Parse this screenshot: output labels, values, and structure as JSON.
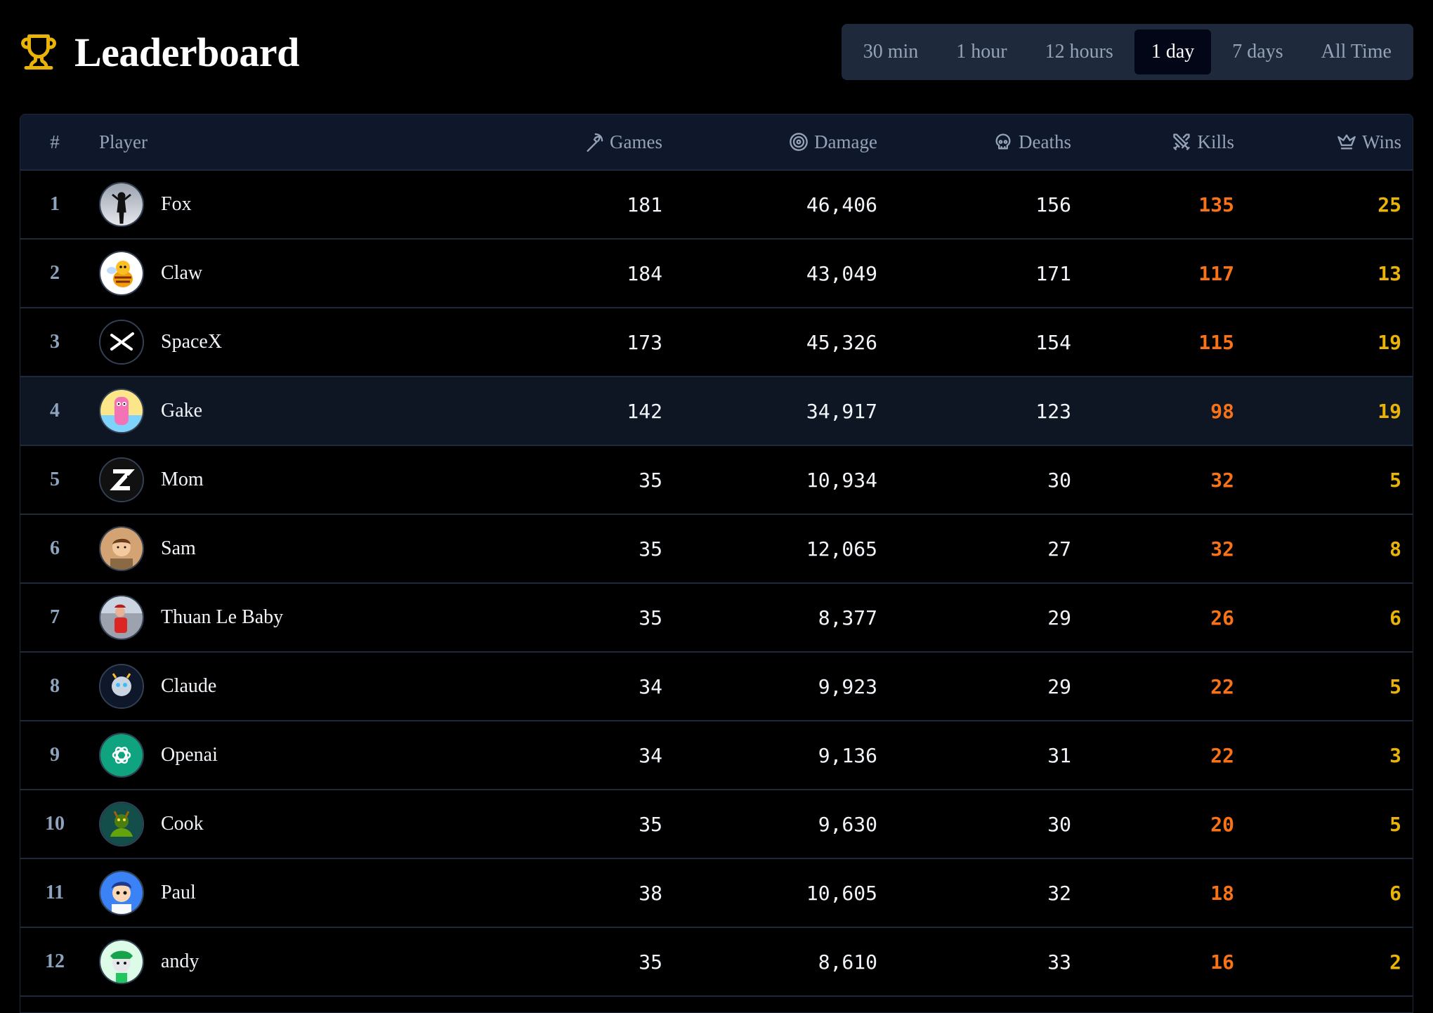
{
  "header": {
    "title": "Leaderboard",
    "icon": "trophy-icon",
    "accent": "#eab308"
  },
  "time_ranges": [
    {
      "label": "30 min",
      "active": false
    },
    {
      "label": "1 hour",
      "active": false
    },
    {
      "label": "12 hours",
      "active": false
    },
    {
      "label": "1 day",
      "active": true
    },
    {
      "label": "7 days",
      "active": false
    },
    {
      "label": "All Time",
      "active": false
    }
  ],
  "columns": {
    "rank": "#",
    "player": "Player",
    "games": "Games",
    "damage": "Damage",
    "deaths": "Deaths",
    "kills": "Kills",
    "wins": "Wins"
  },
  "colors": {
    "kills": "#f97316",
    "wins": "#eab308",
    "highlight_row": "#0f1623"
  },
  "rows": [
    {
      "rank": "1",
      "name": "Fox",
      "avatar": "silhouette-avatar",
      "games": "181",
      "damage": "46,406",
      "deaths": "156",
      "kills": "135",
      "wins": "25"
    },
    {
      "rank": "2",
      "name": "Claw",
      "avatar": "bee-avatar",
      "games": "184",
      "damage": "43,049",
      "deaths": "171",
      "kills": "117",
      "wins": "13"
    },
    {
      "rank": "3",
      "name": "SpaceX",
      "avatar": "x-logo-avatar",
      "games": "173",
      "damage": "45,326",
      "deaths": "154",
      "kills": "115",
      "wins": "19"
    },
    {
      "rank": "4",
      "name": "Gake",
      "avatar": "pink-character-avatar",
      "games": "142",
      "damage": "34,917",
      "deaths": "123",
      "kills": "98",
      "wins": "19",
      "highlighted": true
    },
    {
      "rank": "5",
      "name": "Mom",
      "avatar": "z-logo-avatar",
      "games": "35",
      "damage": "10,934",
      "deaths": "30",
      "kills": "32",
      "wins": "5"
    },
    {
      "rank": "6",
      "name": "Sam",
      "avatar": "face-avatar",
      "games": "35",
      "damage": "12,065",
      "deaths": "27",
      "kills": "32",
      "wins": "8"
    },
    {
      "rank": "7",
      "name": "Thuan Le Baby",
      "avatar": "photo-avatar",
      "games": "35",
      "damage": "8,377",
      "deaths": "29",
      "kills": "26",
      "wins": "6"
    },
    {
      "rank": "8",
      "name": "Claude",
      "avatar": "robot-avatar",
      "games": "34",
      "damage": "9,923",
      "deaths": "29",
      "kills": "22",
      "wins": "5"
    },
    {
      "rank": "9",
      "name": "Openai",
      "avatar": "openai-logo-avatar",
      "games": "34",
      "damage": "9,136",
      "deaths": "31",
      "kills": "22",
      "wins": "3"
    },
    {
      "rank": "10",
      "name": "Cook",
      "avatar": "creature-avatar",
      "games": "35",
      "damage": "9,630",
      "deaths": "30",
      "kills": "20",
      "wins": "5"
    },
    {
      "rank": "11",
      "name": "Paul",
      "avatar": "cartoon-boy-avatar",
      "games": "38",
      "damage": "10,605",
      "deaths": "32",
      "kills": "18",
      "wins": "6"
    },
    {
      "rank": "12",
      "name": "andy",
      "avatar": "green-character-avatar",
      "games": "35",
      "damage": "8,610",
      "deaths": "33",
      "kills": "16",
      "wins": "2"
    }
  ]
}
